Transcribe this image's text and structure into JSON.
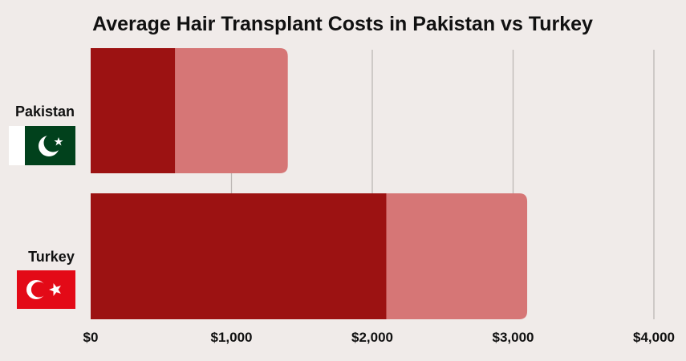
{
  "chart_data": {
    "type": "bar",
    "orientation": "horizontal",
    "stacked": true,
    "title": "Average Hair Transplant Costs in Pakistan vs Turkey",
    "xlabel": "",
    "ylabel": "",
    "categories": [
      "Pakistan",
      "Turkey"
    ],
    "series": [
      {
        "values": [
          600,
          2100
        ],
        "color": "#9c1212"
      },
      {
        "values": [
          800,
          1000
        ],
        "color": "#d67676"
      }
    ],
    "xlim": [
      0,
      4000
    ],
    "xticks": [
      0,
      1000,
      2000,
      3000,
      4000
    ],
    "xtick_labels": [
      "$0",
      "$1,000",
      "$2,000",
      "$3,000",
      "$4,000"
    ],
    "grid": "vertical",
    "category_icons": [
      "pakistan-flag-icon",
      "turkey-flag-icon"
    ],
    "colors": {
      "background": "#f0ebe9",
      "grid": "#bdb7b5",
      "pakistan_green": "#01411c",
      "turkey_red": "#e30a17"
    }
  }
}
